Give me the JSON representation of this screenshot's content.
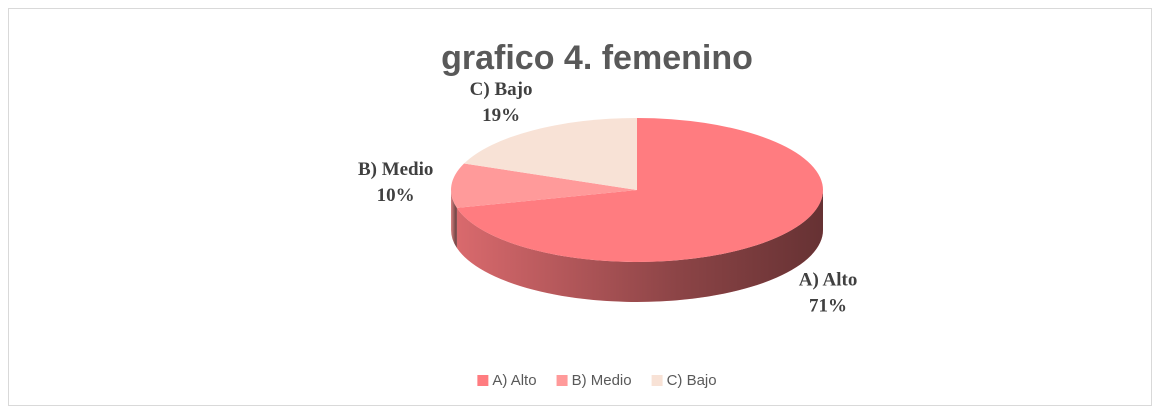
{
  "chart_data": {
    "type": "pie",
    "title": "grafico 4. femenino",
    "categories": [
      "A) Alto",
      "B) Medio",
      "C) Bajo"
    ],
    "values": [
      71,
      10,
      19
    ],
    "value_labels": [
      "71%",
      "10%",
      "19%"
    ],
    "colors": [
      "#ff7c80",
      "#ff9a9a",
      "#f8e2d6"
    ],
    "legend": "bottom"
  }
}
